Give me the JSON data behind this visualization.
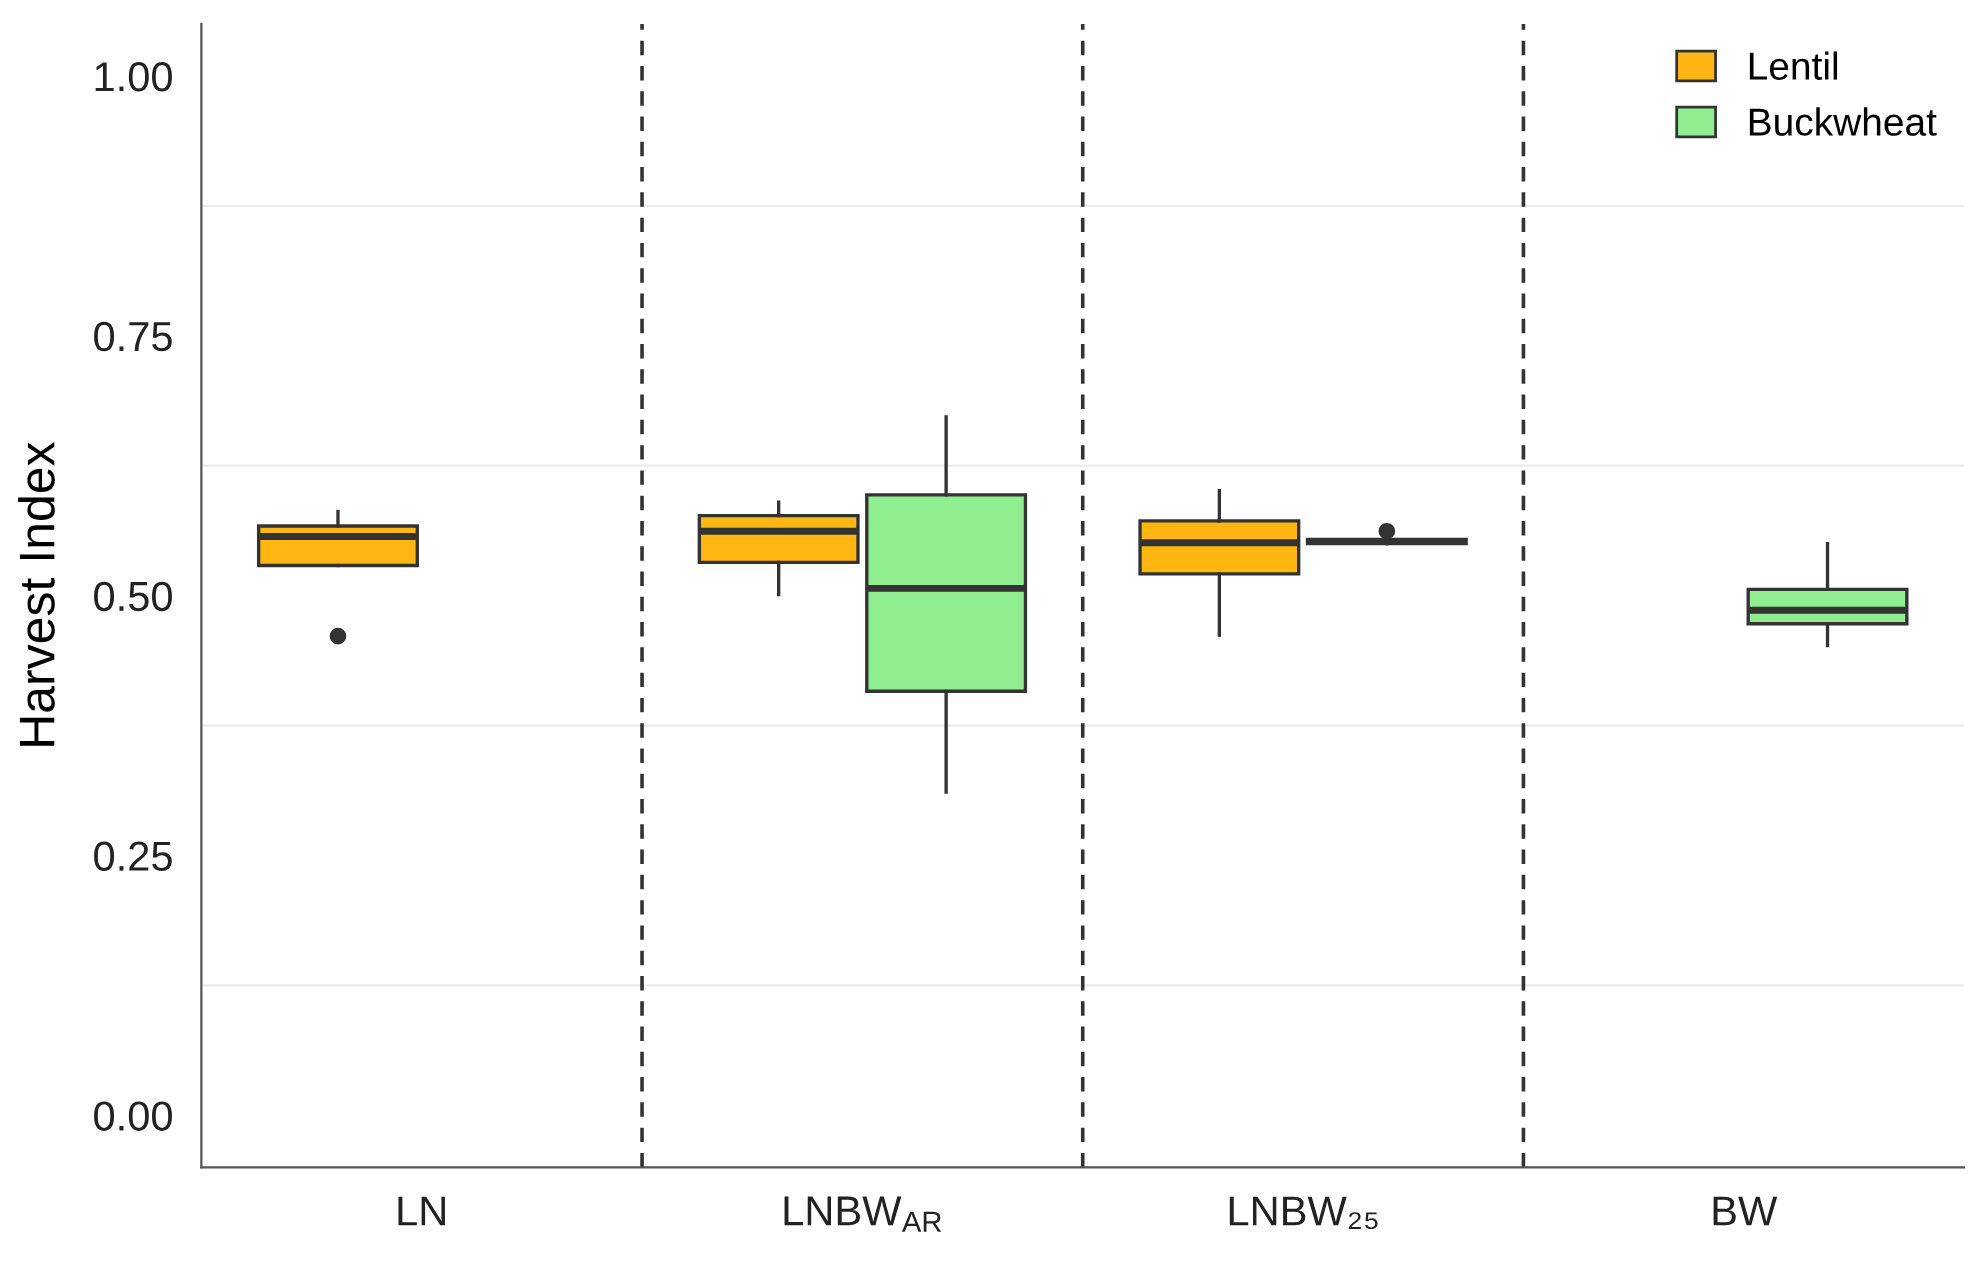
{
  "chart_data": {
    "type": "box",
    "ylabel": "Harvest Index",
    "categories": [
      "LN",
      "LNBW$_{AR}$",
      "LNBW₂₅",
      "BW"
    ],
    "series": [
      {
        "name": "Lentil",
        "color": "#ffb612",
        "boxes": [
          {
            "low": 0.529,
            "q1": 0.529,
            "median": 0.557,
            "q3": 0.567,
            "high": 0.581,
            "outliers": [
              0.461
            ]
          },
          {
            "low": 0.501,
            "q1": 0.532,
            "median": 0.562,
            "q3": 0.577,
            "high": 0.59
          },
          {
            "low": 0.462,
            "q1": 0.521,
            "median": 0.551,
            "q3": 0.572,
            "high": 0.601
          },
          null
        ]
      },
      {
        "name": "Buckwheat",
        "color": "#90ee90",
        "boxes": [
          null,
          {
            "low": 0.311,
            "q1": 0.408,
            "median": 0.507,
            "q3": 0.597,
            "high": 0.672
          },
          {
            "low": 0.55,
            "q1": 0.55,
            "median": 0.552,
            "q3": 0.554,
            "high": 0.554,
            "outliers": [
              0.562
            ]
          },
          {
            "low": 0.452,
            "q1": 0.473,
            "median": 0.486,
            "q3": 0.506,
            "high": 0.55
          }
        ]
      }
    ],
    "ylim": [
      -0.05,
      1.05
    ],
    "yticks": [
      {
        "value": 0,
        "label": "0.00"
      },
      {
        "value": 0.125,
        "label": null
      },
      {
        "value": 0.25,
        "label": "0.25"
      },
      {
        "value": 0.375,
        "label": null
      },
      {
        "value": 0.5,
        "label": "0.50"
      },
      {
        "value": 0.625,
        "label": null
      },
      {
        "value": 0.75,
        "label": "0.75"
      },
      {
        "value": 0.875,
        "label": null
      },
      {
        "value": 1,
        "label": "1.00"
      }
    ],
    "grid": "y",
    "legend": "top right"
  }
}
